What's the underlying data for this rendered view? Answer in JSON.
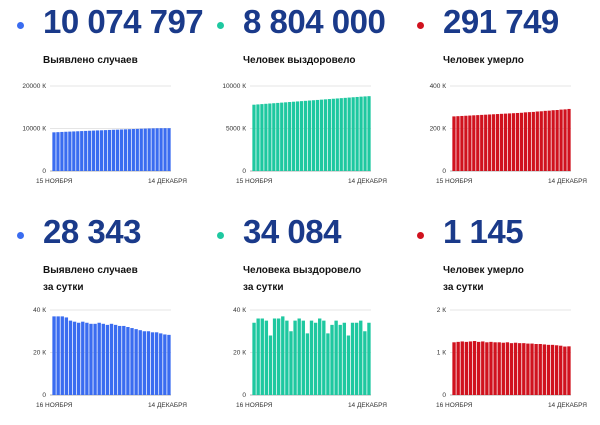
{
  "panels": [
    {
      "id": "cases-total",
      "value": "10 074 797",
      "label_lines": [
        "Выявлено случаев"
      ],
      "color": "#3a6cf0",
      "chart_data": {
        "type": "bar",
        "x_start_label": "15 НОЯБРЯ",
        "x_end_label": "14 ДЕКАБРЯ",
        "yticks": [
          0,
          10000,
          20000
        ],
        "ytick_labels": [
          "0",
          "10000 К",
          "20000 К"
        ],
        "ylim": [
          0,
          20000
        ],
        "unit": "К",
        "values": [
          9100,
          9140,
          9190,
          9230,
          9270,
          9310,
          9350,
          9390,
          9430,
          9470,
          9510,
          9550,
          9580,
          9620,
          9660,
          9700,
          9730,
          9770,
          9810,
          9840,
          9880,
          9910,
          9950,
          9980,
          10010,
          10040,
          10060,
          10075,
          10080,
          10075
        ]
      }
    },
    {
      "id": "recovered-total",
      "value": "8 804 000",
      "label_lines": [
        "Человек выздоровело"
      ],
      "color": "#1ec8a0",
      "chart_data": {
        "type": "bar",
        "x_start_label": "15 НОЯБРЯ",
        "x_end_label": "14 ДЕКАБРЯ",
        "yticks": [
          0,
          5000,
          10000
        ],
        "ytick_labels": [
          "0",
          "5000 К",
          "10000 К"
        ],
        "ylim": [
          0,
          10000
        ],
        "unit": "К",
        "values": [
          7800,
          7835,
          7870,
          7905,
          7940,
          7975,
          8010,
          8045,
          8080,
          8115,
          8150,
          8185,
          8220,
          8255,
          8290,
          8325,
          8360,
          8395,
          8430,
          8465,
          8500,
          8535,
          8570,
          8605,
          8640,
          8675,
          8710,
          8745,
          8775,
          8804
        ]
      }
    },
    {
      "id": "deaths-total",
      "value": "291 749",
      "label_lines": [
        "Человек умерло"
      ],
      "color": "#d0121e",
      "chart_data": {
        "type": "bar",
        "x_start_label": "15 НОЯБРЯ",
        "x_end_label": "14 ДЕКАБРЯ",
        "yticks": [
          0,
          200,
          400
        ],
        "ytick_labels": [
          "0",
          "200 К",
          "400 К"
        ],
        "ylim": [
          0,
          400
        ],
        "unit": "К",
        "values": [
          257,
          258,
          259,
          260,
          261,
          262,
          263,
          264,
          265,
          266,
          267,
          268,
          269,
          270,
          271,
          272,
          273,
          274,
          276,
          277,
          278,
          280,
          281,
          283,
          284,
          286,
          287,
          289,
          290,
          292
        ]
      }
    },
    {
      "id": "cases-daily",
      "value": "28 343",
      "label_lines": [
        "Выявлено случаев",
        "за сутки"
      ],
      "color": "#3a6cf0",
      "chart_data": {
        "type": "bar",
        "x_start_label": "16 НОЯБРЯ",
        "x_end_label": "14 ДЕКАБРЯ",
        "yticks": [
          0,
          20,
          40
        ],
        "ytick_labels": [
          "0",
          "20 К",
          "40 К"
        ],
        "ylim": [
          0,
          40
        ],
        "unit": "К",
        "values": [
          37,
          37,
          37,
          36.5,
          35,
          34.5,
          34,
          34.5,
          34,
          33.5,
          33.5,
          34,
          33.5,
          33,
          33.5,
          33,
          32.5,
          32.5,
          32,
          31.5,
          31,
          30.5,
          30,
          30,
          29.5,
          29.5,
          29,
          28.5,
          28.3
        ]
      }
    },
    {
      "id": "recovered-daily",
      "value": "34 084",
      "label_lines": [
        "Человека выздоровело",
        "за сутки"
      ],
      "color": "#1ec8a0",
      "chart_data": {
        "type": "bar",
        "x_start_label": "16 НОЯБРЯ",
        "x_end_label": "14 ДЕКАБРЯ",
        "yticks": [
          0,
          20,
          40
        ],
        "ytick_labels": [
          "0",
          "20 К",
          "40 К"
        ],
        "ylim": [
          0,
          40
        ],
        "unit": "К",
        "values": [
          34,
          36,
          36,
          35,
          28,
          36,
          36,
          37,
          35,
          30,
          35,
          36,
          35,
          29,
          35,
          34,
          36,
          35,
          29,
          33,
          35,
          33,
          34,
          28,
          34,
          34,
          35,
          30,
          34
        ]
      }
    },
    {
      "id": "deaths-daily",
      "value": "1 145",
      "label_lines": [
        "Человек умерло",
        "за сутки"
      ],
      "color": "#d0121e",
      "chart_data": {
        "type": "bar",
        "x_start_label": "16 НОЯБРЯ",
        "x_end_label": "14 ДЕКАБРЯ",
        "yticks": [
          0,
          1,
          2
        ],
        "ytick_labels": [
          "0",
          "1 К",
          "2 К"
        ],
        "ylim": [
          0,
          2
        ],
        "unit": "К",
        "values": [
          1.24,
          1.25,
          1.26,
          1.25,
          1.26,
          1.27,
          1.25,
          1.26,
          1.24,
          1.25,
          1.24,
          1.24,
          1.23,
          1.24,
          1.22,
          1.23,
          1.22,
          1.22,
          1.21,
          1.21,
          1.2,
          1.2,
          1.19,
          1.18,
          1.18,
          1.17,
          1.16,
          1.14,
          1.145
        ]
      }
    }
  ]
}
